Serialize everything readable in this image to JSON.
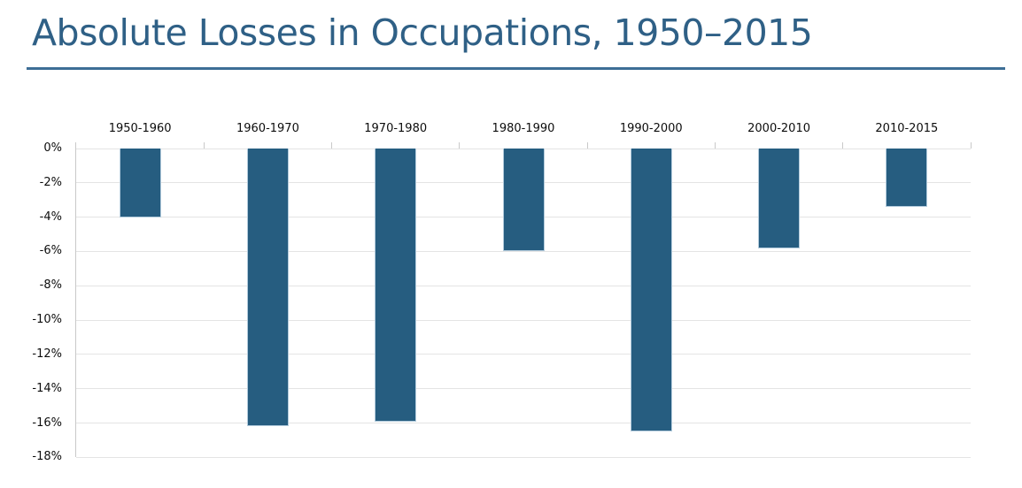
{
  "page": {
    "title": "Absolute Losses in Occupations, 1950–2015"
  },
  "chart_data": {
    "type": "bar",
    "title": "Absolute Losses in Occupations, 1950–2015",
    "categories": [
      "1950-1960",
      "1960-1970",
      "1970-1980",
      "1980-1990",
      "1990-2000",
      "2000-2010",
      "2010-2015"
    ],
    "values": [
      -4.0,
      -16.2,
      -15.9,
      -6.0,
      -16.5,
      -5.8,
      -3.4
    ],
    "unit": "%",
    "xlabel": "",
    "ylabel": "",
    "ylim": [
      -18,
      0
    ],
    "y_ticks": [
      "0%",
      "-2%",
      "-4%",
      "-6%",
      "-8%",
      "-10%",
      "-12%",
      "-14%",
      "-16%",
      "-18%"
    ],
    "y_tick_values": [
      0,
      -2,
      -4,
      -6,
      -8,
      -10,
      -12,
      -14,
      -16,
      -18
    ],
    "grid": true,
    "legend": "none",
    "category_label_position": "top",
    "colors": {
      "bar": "#265D80",
      "bar_border": "#b3cbdc",
      "gridline": "#e4e4e4",
      "axis": "#c9c9c9",
      "label": "#0d0d0d",
      "title": "#2F6086",
      "underline": "#3D6E96"
    }
  }
}
